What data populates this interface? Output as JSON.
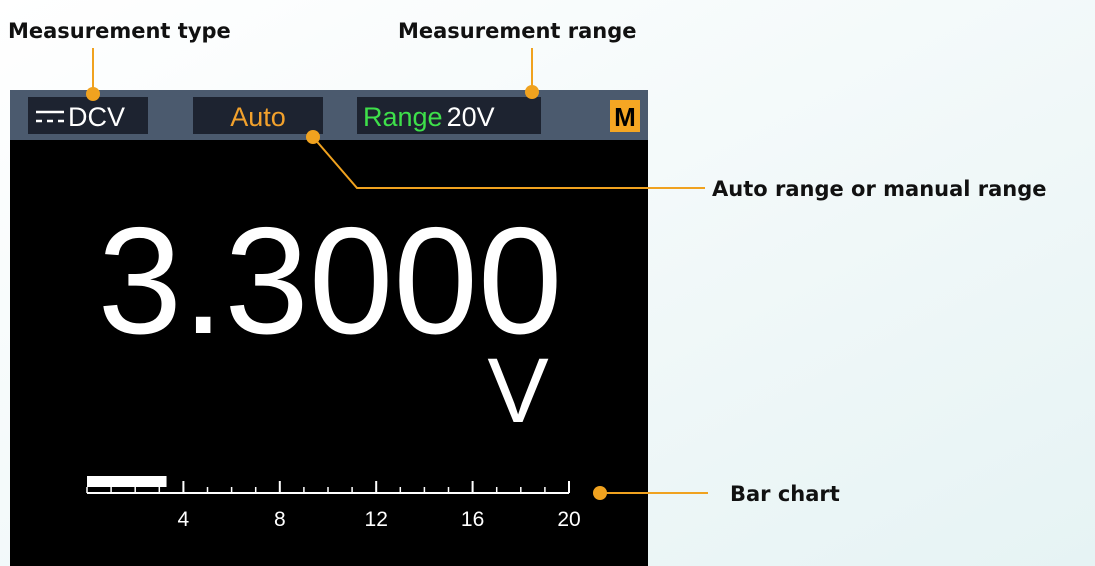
{
  "annotations": {
    "measurement_type": "Measurement type",
    "measurement_range": "Measurement range",
    "auto_manual": "Auto range or manual range",
    "bar_chart": "Bar chart"
  },
  "status_bar": {
    "type": "DCV",
    "mode": "Auto",
    "range_label": "Range",
    "range_value": "20V",
    "flag": "M"
  },
  "reading": {
    "value": "3.3000",
    "unit": "V"
  },
  "bar_chart": {
    "type": "bar",
    "value": 3.3,
    "xlim": [
      0,
      20
    ],
    "xticks": [
      4,
      8,
      12,
      16,
      20
    ]
  }
}
